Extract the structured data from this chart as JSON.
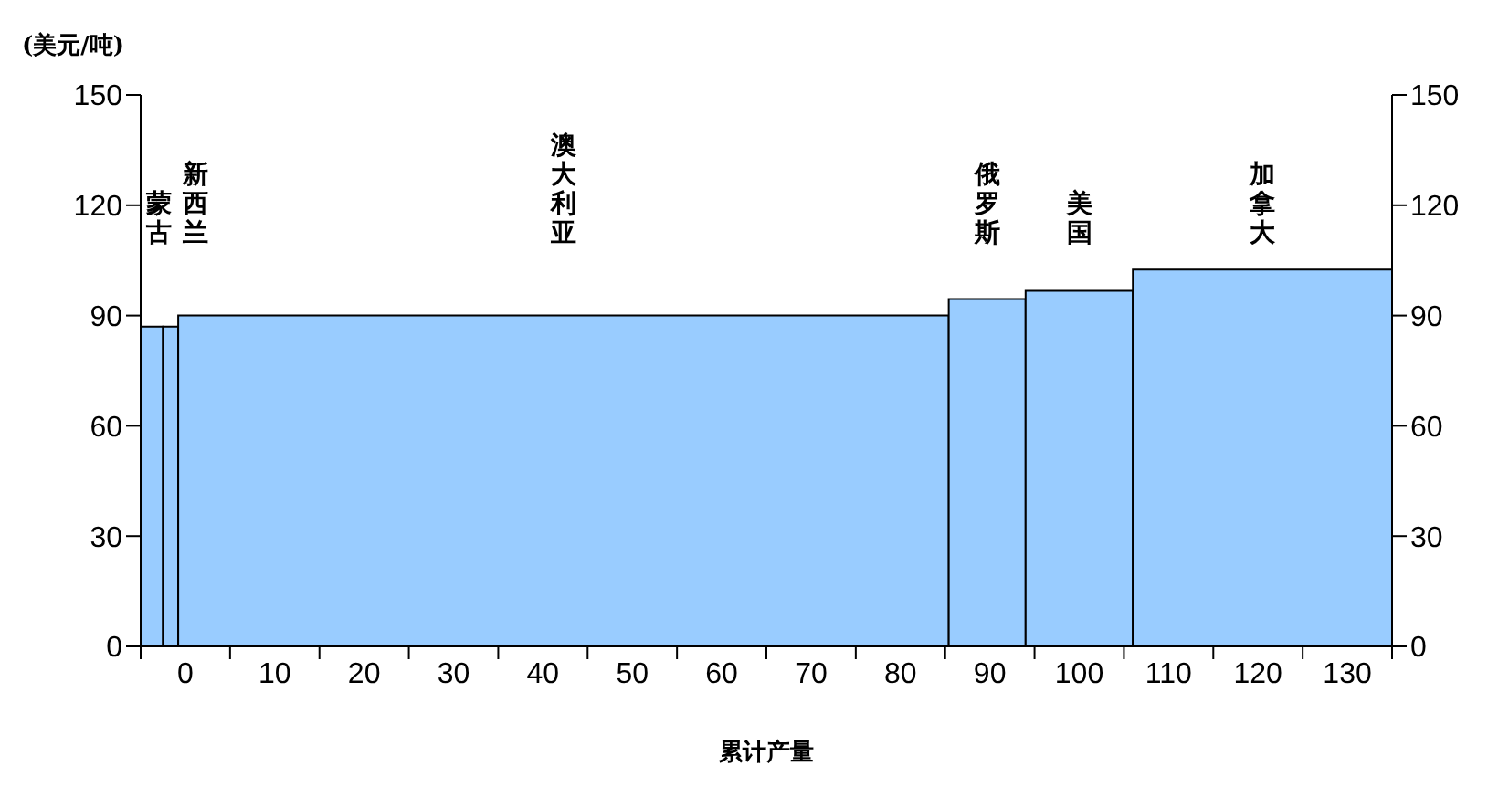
{
  "chart_data": {
    "type": "histogram",
    "ylabel": "(美元/吨)",
    "xlabel": "累计产量",
    "bins": [
      -5,
      -2.5,
      -0.8,
      85.4,
      94,
      106,
      135
    ],
    "values": [
      87,
      87,
      90,
      94.5,
      96.7,
      102.5
    ],
    "color": "#99ccff",
    "xlim": [
      -5,
      135
    ],
    "xticks": [
      {
        "value": -5,
        "label": null
      },
      0,
      {
        "value": 5,
        "label": null
      },
      10,
      {
        "value": 15,
        "label": null
      },
      20,
      {
        "value": 25,
        "label": null
      },
      30,
      {
        "value": 35,
        "label": null
      },
      40,
      {
        "value": 45,
        "label": null
      },
      50,
      {
        "value": 55,
        "label": null
      },
      60,
      {
        "value": 65,
        "label": null
      },
      70,
      {
        "value": 75,
        "label": null
      },
      80,
      {
        "value": 85,
        "label": null
      },
      90,
      {
        "value": 95,
        "label": null
      },
      100,
      {
        "value": 105,
        "label": null
      },
      110,
      {
        "value": 115,
        "label": null
      },
      120,
      {
        "value": 125,
        "label": null
      },
      130,
      {
        "value": 135,
        "label": null
      }
    ],
    "ylim": [
      0,
      150
    ],
    "yticks": [
      0,
      30,
      60,
      90,
      120,
      150
    ],
    "y2lim": [
      0,
      150
    ],
    "y2ticks": [
      0,
      30,
      60,
      90,
      120,
      150
    ],
    "grid": false,
    "annotations": [
      "蒙古",
      "新西兰",
      "澳大利亚",
      "俄罗斯",
      "美国",
      "加拿大"
    ]
  }
}
